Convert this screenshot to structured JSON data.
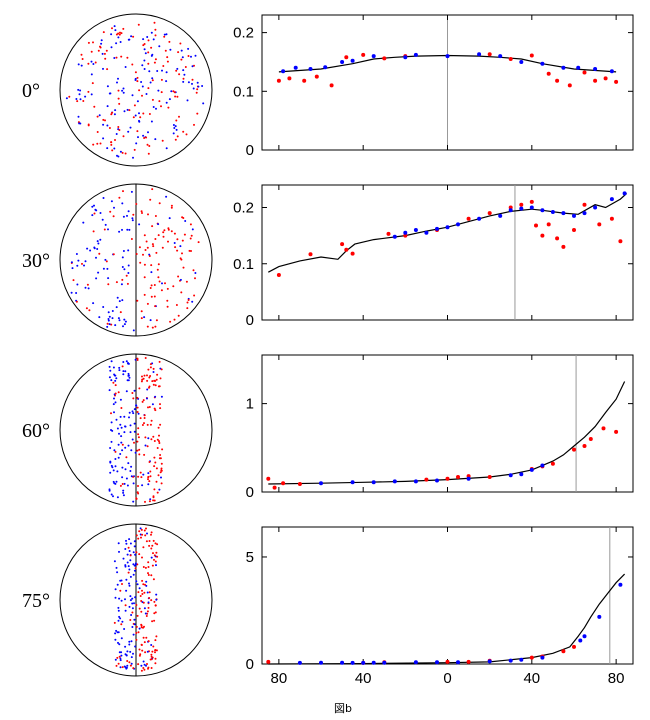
{
  "caption": "図b",
  "colors": {
    "red": "#ff0000",
    "blue": "#0000ff",
    "line": "#000000",
    "vline": "#999999"
  },
  "chart_data": [
    {
      "type": "scatter",
      "row_label": "0°",
      "x_tick_labels": [
        "80",
        "40",
        "0",
        "40",
        "80"
      ],
      "x_tick_values": [
        -80,
        -40,
        0,
        40,
        80
      ],
      "xlim": [
        -88,
        88
      ],
      "ylim": [
        0,
        0.23
      ],
      "y_ticks": [
        0,
        0.1,
        0.2
      ],
      "y_tick_labels": [
        "0",
        "0.1",
        "0.2"
      ],
      "marker_x": 0,
      "curve": [
        [
          -80,
          0.133
        ],
        [
          -60,
          0.138
        ],
        [
          -45,
          0.147
        ],
        [
          -35,
          0.155
        ],
        [
          -25,
          0.158
        ],
        [
          -15,
          0.16
        ],
        [
          0,
          0.161
        ],
        [
          15,
          0.16
        ],
        [
          25,
          0.158
        ],
        [
          35,
          0.155
        ],
        [
          45,
          0.147
        ],
        [
          60,
          0.138
        ],
        [
          80,
          0.133
        ]
      ],
      "series": [
        {
          "color": "red",
          "points": [
            [
              -80,
              0.118
            ],
            [
              -75,
              0.122
            ],
            [
              -68,
              0.118
            ],
            [
              -62,
              0.125
            ],
            [
              -55,
              0.11
            ],
            [
              -48,
              0.158
            ],
            [
              -40,
              0.162
            ],
            [
              -30,
              0.156
            ],
            [
              -20,
              0.16
            ],
            [
              20,
              0.163
            ],
            [
              30,
              0.155
            ],
            [
              40,
              0.161
            ],
            [
              48,
              0.13
            ],
            [
              52,
              0.118
            ],
            [
              58,
              0.11
            ],
            [
              65,
              0.132
            ],
            [
              70,
              0.118
            ],
            [
              75,
              0.122
            ],
            [
              80,
              0.116
            ]
          ]
        },
        {
          "color": "blue",
          "points": [
            [
              -78,
              0.134
            ],
            [
              -72,
              0.14
            ],
            [
              -65,
              0.138
            ],
            [
              -58,
              0.141
            ],
            [
              -50,
              0.15
            ],
            [
              -45,
              0.152
            ],
            [
              -35,
              0.16
            ],
            [
              -20,
              0.158
            ],
            [
              -15,
              0.162
            ],
            [
              0,
              0.16
            ],
            [
              15,
              0.163
            ],
            [
              25,
              0.16
            ],
            [
              35,
              0.15
            ],
            [
              45,
              0.147
            ],
            [
              55,
              0.14
            ],
            [
              62,
              0.14
            ],
            [
              70,
              0.138
            ],
            [
              78,
              0.134
            ]
          ]
        }
      ]
    },
    {
      "type": "scatter",
      "row_label": "30°",
      "x_tick_labels": [
        "80",
        "40",
        "0",
        "40",
        "80"
      ],
      "x_tick_values": [
        -80,
        -40,
        0,
        40,
        80
      ],
      "xlim": [
        -88,
        88
      ],
      "ylim": [
        0,
        0.24
      ],
      "y_ticks": [
        0,
        0.1,
        0.2
      ],
      "y_tick_labels": [
        "0",
        "0.1",
        "0.2"
      ],
      "marker_x": 32,
      "curve": [
        [
          -85,
          0.085
        ],
        [
          -80,
          0.095
        ],
        [
          -70,
          0.105
        ],
        [
          -60,
          0.112
        ],
        [
          -52,
          0.108
        ],
        [
          -48,
          0.123
        ],
        [
          -44,
          0.135
        ],
        [
          -35,
          0.143
        ],
        [
          -20,
          0.15
        ],
        [
          -10,
          0.158
        ],
        [
          0,
          0.165
        ],
        [
          10,
          0.175
        ],
        [
          20,
          0.185
        ],
        [
          30,
          0.193
        ],
        [
          40,
          0.197
        ],
        [
          45,
          0.195
        ],
        [
          55,
          0.19
        ],
        [
          62,
          0.188
        ],
        [
          70,
          0.205
        ],
        [
          75,
          0.2
        ],
        [
          82,
          0.215
        ],
        [
          85,
          0.225
        ]
      ],
      "series": [
        {
          "color": "red",
          "points": [
            [
              -80,
              0.08
            ],
            [
              -65,
              0.117
            ],
            [
              -50,
              0.135
            ],
            [
              -48,
              0.125
            ],
            [
              -45,
              0.118
            ],
            [
              -28,
              0.153
            ],
            [
              -20,
              0.15
            ],
            [
              -5,
              0.16
            ],
            [
              10,
              0.18
            ],
            [
              20,
              0.19
            ],
            [
              30,
              0.2
            ],
            [
              35,
              0.205
            ],
            [
              40,
              0.21
            ],
            [
              42,
              0.168
            ],
            [
              45,
              0.15
            ],
            [
              48,
              0.17
            ],
            [
              52,
              0.145
            ],
            [
              55,
              0.13
            ],
            [
              60,
              0.16
            ],
            [
              65,
              0.205
            ],
            [
              72,
              0.17
            ],
            [
              78,
              0.18
            ],
            [
              82,
              0.14
            ]
          ]
        },
        {
          "color": "blue",
          "points": [
            [
              -25,
              0.148
            ],
            [
              -20,
              0.155
            ],
            [
              -15,
              0.16
            ],
            [
              -10,
              0.155
            ],
            [
              -5,
              0.162
            ],
            [
              0,
              0.165
            ],
            [
              5,
              0.17
            ],
            [
              15,
              0.18
            ],
            [
              25,
              0.185
            ],
            [
              30,
              0.195
            ],
            [
              35,
              0.198
            ],
            [
              40,
              0.2
            ],
            [
              45,
              0.195
            ],
            [
              50,
              0.192
            ],
            [
              55,
              0.19
            ],
            [
              60,
              0.185
            ],
            [
              65,
              0.19
            ],
            [
              70,
              0.2
            ],
            [
              78,
              0.215
            ],
            [
              84,
              0.225
            ]
          ]
        }
      ]
    },
    {
      "type": "scatter",
      "row_label": "60°",
      "x_tick_labels": [
        "80",
        "40",
        "0",
        "40",
        "80"
      ],
      "x_tick_values": [
        -80,
        -40,
        0,
        40,
        80
      ],
      "xlim": [
        -88,
        88
      ],
      "ylim": [
        0,
        1.55
      ],
      "y_ticks": [
        0,
        1
      ],
      "y_tick_labels": [
        "0",
        "1"
      ],
      "marker_x": 61,
      "curve": [
        [
          -85,
          0.09
        ],
        [
          -60,
          0.1
        ],
        [
          -40,
          0.11
        ],
        [
          -20,
          0.12
        ],
        [
          0,
          0.14
        ],
        [
          20,
          0.17
        ],
        [
          30,
          0.2
        ],
        [
          40,
          0.25
        ],
        [
          50,
          0.35
        ],
        [
          55,
          0.42
        ],
        [
          60,
          0.52
        ],
        [
          65,
          0.62
        ],
        [
          70,
          0.74
        ],
        [
          75,
          0.9
        ],
        [
          80,
          1.05
        ],
        [
          84,
          1.25
        ]
      ],
      "series": [
        {
          "color": "red",
          "points": [
            [
              -85,
              0.15
            ],
            [
              -82,
              0.05
            ],
            [
              -78,
              0.1
            ],
            [
              -70,
              0.09
            ],
            [
              -10,
              0.14
            ],
            [
              0,
              0.15
            ],
            [
              5,
              0.17
            ],
            [
              10,
              0.18
            ],
            [
              20,
              0.17
            ],
            [
              40,
              0.26
            ],
            [
              45,
              0.29
            ],
            [
              50,
              0.32
            ],
            [
              60,
              0.48
            ],
            [
              65,
              0.52
            ],
            [
              68,
              0.6
            ],
            [
              74,
              0.72
            ],
            [
              80,
              0.68
            ]
          ]
        },
        {
          "color": "blue",
          "points": [
            [
              -60,
              0.1
            ],
            [
              -45,
              0.11
            ],
            [
              -35,
              0.11
            ],
            [
              -25,
              0.12
            ],
            [
              -15,
              0.12
            ],
            [
              -5,
              0.13
            ],
            [
              10,
              0.15
            ],
            [
              30,
              0.19
            ],
            [
              35,
              0.2
            ],
            [
              40,
              0.25
            ],
            [
              45,
              0.3
            ]
          ]
        }
      ]
    },
    {
      "type": "scatter",
      "row_label": "75°",
      "x_tick_labels": [
        "80",
        "40",
        "0",
        "40",
        "80"
      ],
      "x_tick_values": [
        -80,
        -40,
        0,
        40,
        80
      ],
      "xlim": [
        -88,
        88
      ],
      "ylim": [
        0,
        6.4
      ],
      "y_ticks": [
        0,
        5
      ],
      "y_tick_labels": [
        "0",
        "5"
      ],
      "marker_x": 77,
      "curve": [
        [
          -85,
          0.0
        ],
        [
          -40,
          0.02
        ],
        [
          0,
          0.06
        ],
        [
          20,
          0.1
        ],
        [
          40,
          0.3
        ],
        [
          50,
          0.5
        ],
        [
          58,
          0.8
        ],
        [
          62,
          1.3
        ],
        [
          65,
          1.7
        ],
        [
          68,
          2.2
        ],
        [
          72,
          2.8
        ],
        [
          76,
          3.3
        ],
        [
          80,
          3.8
        ],
        [
          84,
          4.2
        ]
      ],
      "series": [
        {
          "color": "red",
          "points": [
            [
              -85,
              0.1
            ],
            [
              -40,
              0.05
            ],
            [
              -30,
              0.08
            ],
            [
              0,
              0.1
            ],
            [
              10,
              0.1
            ],
            [
              20,
              0.15
            ],
            [
              40,
              0.3
            ],
            [
              45,
              0.35
            ],
            [
              55,
              0.6
            ],
            [
              60,
              0.8
            ]
          ]
        },
        {
          "color": "blue",
          "points": [
            [
              -70,
              0.05
            ],
            [
              -60,
              0.06
            ],
            [
              -50,
              0.06
            ],
            [
              -45,
              0.05
            ],
            [
              -40,
              0.05
            ],
            [
              -35,
              0.06
            ],
            [
              -30,
              0.06
            ],
            [
              -15,
              0.08
            ],
            [
              -5,
              0.08
            ],
            [
              5,
              0.08
            ],
            [
              20,
              0.12
            ],
            [
              30,
              0.16
            ],
            [
              35,
              0.2
            ],
            [
              45,
              0.3
            ],
            [
              63,
              1.1
            ],
            [
              65,
              1.3
            ],
            [
              72,
              2.2
            ],
            [
              82,
              3.7
            ]
          ]
        }
      ]
    }
  ]
}
